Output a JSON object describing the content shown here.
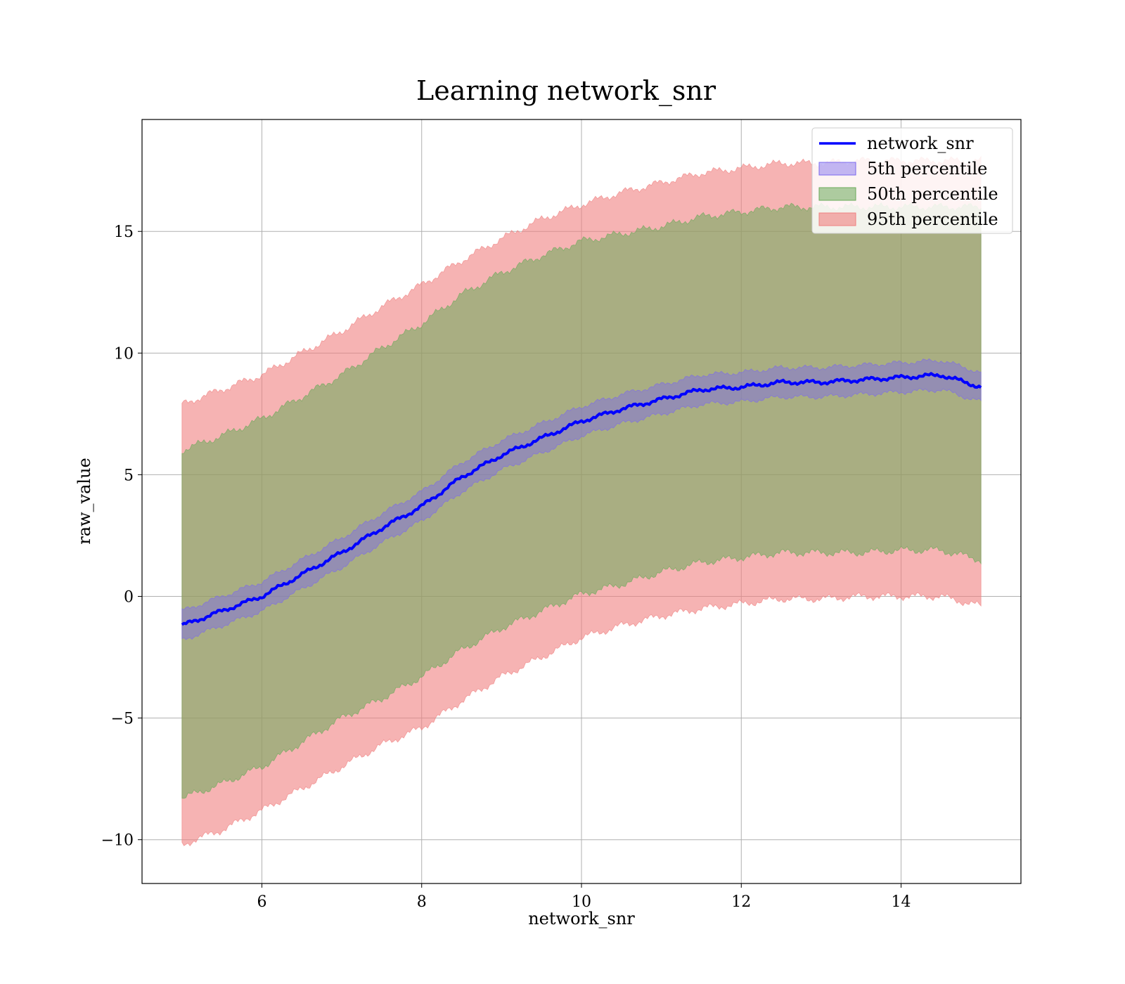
{
  "chart_data": {
    "type": "line",
    "title": "Learning network_snr",
    "xlabel": "network_snr",
    "ylabel": "raw_value",
    "xlim": [
      4.5,
      15.5
    ],
    "ylim": [
      -11.8,
      19.6
    ],
    "xticks": [
      6,
      8,
      10,
      12,
      14
    ],
    "yticks": [
      -10,
      -5,
      0,
      5,
      10,
      15
    ],
    "xtick_labels": [
      "6",
      "8",
      "10",
      "12",
      "14"
    ],
    "ytick_labels": [
      "−10",
      "−5",
      "0",
      "5",
      "10",
      "15"
    ],
    "grid": true,
    "legend_position": "top-right",
    "x": [
      5,
      5.5,
      6,
      6.5,
      7,
      7.5,
      8,
      8.5,
      9,
      9.5,
      10,
      10.5,
      11,
      11.5,
      12,
      12.5,
      13,
      13.5,
      14,
      14.5,
      15
    ],
    "series": [
      {
        "name": "network_snr",
        "kind": "line",
        "color": "#0000ff",
        "values": [
          -1.2,
          -0.6,
          0.0,
          0.9,
          1.8,
          2.8,
          3.7,
          4.9,
          5.8,
          6.5,
          7.2,
          7.7,
          8.1,
          8.5,
          8.6,
          8.8,
          8.8,
          8.9,
          9.0,
          9.1,
          8.6
        ]
      },
      {
        "name": "5th percentile",
        "kind": "band",
        "color": "#7b68ee",
        "lower": [
          -1.8,
          -1.2,
          -0.6,
          0.3,
          1.2,
          2.2,
          3.1,
          4.3,
          5.2,
          5.9,
          6.6,
          7.1,
          7.5,
          7.9,
          8.0,
          8.2,
          8.2,
          8.3,
          8.4,
          8.5,
          8.0
        ],
        "upper": [
          -0.6,
          0.0,
          0.6,
          1.5,
          2.4,
          3.4,
          4.3,
          5.5,
          6.4,
          7.1,
          7.8,
          8.3,
          8.7,
          9.1,
          9.2,
          9.4,
          9.4,
          9.5,
          9.6,
          9.7,
          9.2
        ]
      },
      {
        "name": "50th percentile",
        "kind": "band",
        "color": "#6aaa5a",
        "lower": [
          -8.3,
          -7.7,
          -7.0,
          -6.0,
          -5.0,
          -4.2,
          -3.3,
          -2.2,
          -1.3,
          -0.6,
          0.1,
          0.5,
          1.0,
          1.4,
          1.6,
          1.8,
          1.8,
          1.8,
          1.9,
          1.9,
          1.5
        ],
        "upper": [
          6.0,
          6.6,
          7.3,
          8.2,
          9.1,
          10.2,
          11.2,
          12.4,
          13.3,
          14.0,
          14.6,
          14.9,
          15.2,
          15.6,
          15.8,
          16.0,
          16.0,
          16.0,
          16.0,
          16.0,
          16.0
        ]
      },
      {
        "name": "95th percentile",
        "kind": "band",
        "color": "#f08080",
        "lower": [
          -10.2,
          -9.6,
          -8.8,
          -7.9,
          -7.0,
          -6.1,
          -5.4,
          -4.3,
          -3.3,
          -2.5,
          -1.7,
          -1.2,
          -0.8,
          -0.5,
          -0.3,
          -0.1,
          -0.1,
          0.0,
          0.0,
          0.0,
          -0.4
        ],
        "upper": [
          7.9,
          8.5,
          9.1,
          10.0,
          10.9,
          11.9,
          12.8,
          13.8,
          14.7,
          15.5,
          16.1,
          16.6,
          17.0,
          17.4,
          17.6,
          17.8,
          17.8,
          17.9,
          17.9,
          17.9,
          17.9
        ]
      }
    ]
  }
}
